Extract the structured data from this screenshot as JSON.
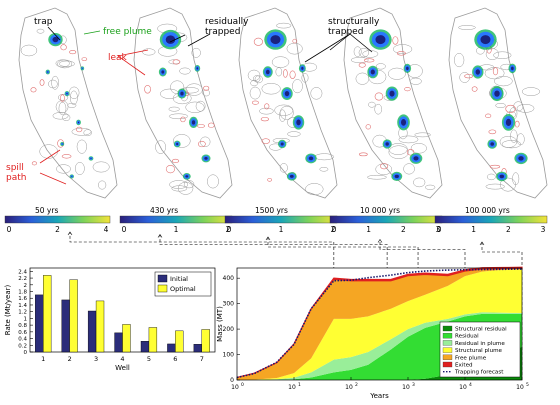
{
  "colors": {
    "initial": "#2b2d7a",
    "optimal": "#ffff33",
    "structural_residual": "#0a8a0a",
    "residual": "#33dd33",
    "residual_in_plume": "#99ee99",
    "structural_plume": "#ffff33",
    "free_plume": "#f5a623",
    "exited": "#e02020",
    "forecast": "#1a1a6e",
    "contour": "#9a9a9a",
    "trap": "#e07070",
    "plume_dark": "#1a237e",
    "plume_mid": "#2979ff",
    "plume_edge": "#00b050"
  },
  "annotations": {
    "trap": "trap",
    "free_plume": "free plume",
    "leak": "leak",
    "spill_path": "spill\npath",
    "residually_trapped": "residually\ntrapped",
    "structurally_trapped": "structurally\ntrapped"
  },
  "maps": [
    {
      "time_label": "50 yrs",
      "ticks": [
        "0",
        "2",
        "4"
      ],
      "plume": 0.2
    },
    {
      "time_label": "430 yrs",
      "ticks": [
        "0",
        "1",
        "2"
      ],
      "plume": 0.55
    },
    {
      "time_label": "1500 yrs",
      "ticks": [
        "0",
        "1",
        "2"
      ],
      "plume": 0.75
    },
    {
      "time_label": "10 000 yrs",
      "ticks": [
        "0",
        "1",
        "2",
        "3"
      ],
      "plume": 0.85
    },
    {
      "time_label": "100 000 yrs",
      "ticks": [
        "0",
        "1",
        "2",
        "3"
      ],
      "plume": 0.9
    }
  ],
  "chart_data": [
    {
      "type": "bar",
      "categories": [
        "1",
        "2",
        "3",
        "4",
        "5",
        "6",
        "7"
      ],
      "series": [
        {
          "name": "Initial",
          "values": [
            1.7,
            1.55,
            1.22,
            0.57,
            0.32,
            0.24,
            0.23
          ]
        },
        {
          "name": "Optimal",
          "values": [
            2.28,
            2.15,
            1.52,
            0.82,
            0.73,
            0.63,
            0.67
          ]
        }
      ],
      "xlabel": "Well",
      "ylabel": "Rate (Mt/year)",
      "ylim": [
        0,
        2.5
      ],
      "yticks": [
        "0",
        "0.2",
        "0.4",
        "0.6",
        "0.8",
        "1",
        "1.2",
        "1.4",
        "1.6",
        "1.8",
        "2",
        "2.2",
        "2.4"
      ],
      "legend_position": "top-right"
    },
    {
      "type": "area",
      "xscale": "log",
      "xlim": [
        1,
        100000
      ],
      "ylim": [
        0,
        440
      ],
      "xlabel": "Years",
      "ylabel": "Mass (MT)",
      "xticks": [
        "10",
        "10",
        "10",
        "10",
        "10",
        "10"
      ],
      "xtick_exponents": [
        "0",
        "1",
        "2",
        "3",
        "4",
        "5"
      ],
      "yticks": [
        "0",
        "100",
        "200",
        "300",
        "400"
      ],
      "x": [
        1,
        2,
        5,
        10,
        20,
        50,
        100,
        200,
        500,
        1000,
        2000,
        5000,
        10000,
        20000,
        50000,
        100000
      ],
      "series": [
        {
          "name": "Structural residual",
          "values": [
            0,
            0,
            0,
            0,
            0,
            0,
            0,
            0,
            0,
            0,
            5,
            20,
            50,
            80,
            110,
            130
          ]
        },
        {
          "name": "Residual",
          "values": [
            0,
            0,
            1,
            3,
            10,
            30,
            40,
            60,
            120,
            170,
            200,
            210,
            200,
            180,
            150,
            130
          ]
        },
        {
          "name": "Residual in plume",
          "values": [
            0,
            0.5,
            2,
            6,
            20,
            50,
            50,
            50,
            40,
            30,
            20,
            10,
            8,
            6,
            4,
            3
          ]
        },
        {
          "name": "Structural plume",
          "values": [
            0,
            1,
            5,
            18,
            55,
            160,
            150,
            140,
            120,
            110,
            110,
            130,
            150,
            160,
            170,
            175
          ]
        },
        {
          "name": "Free plume",
          "values": [
            10,
            25,
            60,
            115,
            195,
            155,
            150,
            140,
            110,
            100,
            80,
            40,
            20,
            10,
            3,
            0
          ]
        },
        {
          "name": "Exited",
          "values": [
            0,
            0,
            0,
            0,
            0,
            5,
            5,
            5,
            5,
            5,
            5,
            5,
            5,
            5,
            5,
            5
          ]
        }
      ],
      "forecast": {
        "name": "Trapping forecast",
        "values": [
          10,
          25,
          70,
          140,
          280,
          390,
          392,
          402,
          412,
          422,
          428,
          432,
          433,
          434,
          435,
          436
        ]
      },
      "legend": [
        "Structural residual",
        "Residual",
        "Residual in plume",
        "Structural plume",
        "Free plume",
        "Exited",
        "Trapping forecast"
      ],
      "legend_position": "bottom-right"
    }
  ]
}
